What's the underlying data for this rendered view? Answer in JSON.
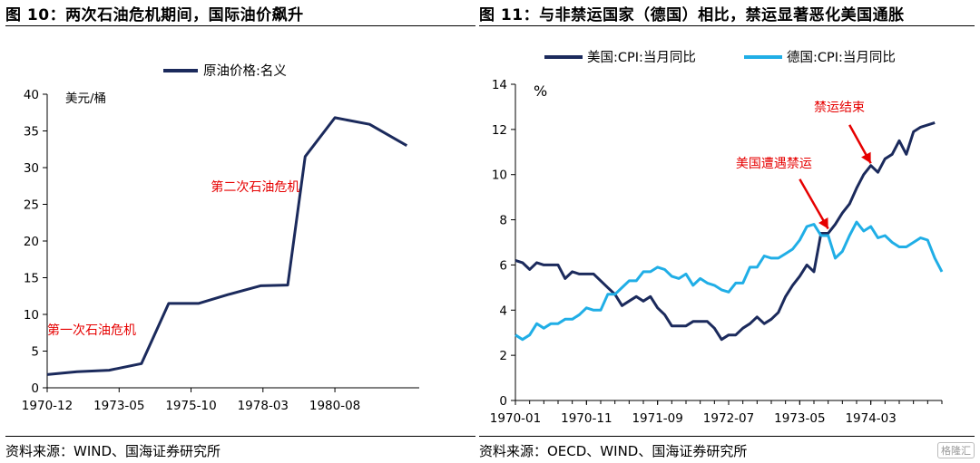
{
  "left": {
    "title": "图 10：两次石油危机期间，国际油价飙升",
    "source": "资料来源：WIND、国海证券研究所"
  },
  "right": {
    "title": "图 11：与非禁运国家（德国）相比，禁运显著恶化美国通胀",
    "source": "资料来源：OECD、WIND、国海证券研究所"
  },
  "watermark": "格隆汇",
  "colors": {
    "navy": "#1b2a5c",
    "lightblue": "#20aee6",
    "annotation": "#e60000"
  },
  "chart_data": [
    {
      "type": "line",
      "unit_label": "美元/桶",
      "ylim": [
        0,
        40
      ],
      "yticks": [
        0,
        5,
        10,
        15,
        20,
        25,
        30,
        35,
        40
      ],
      "xlabels": [
        "1970-12",
        "1973-05",
        "1975-10",
        "1978-03",
        "1980-08"
      ],
      "x_range": [
        "1970-12",
        "1983-06"
      ],
      "series": [
        {
          "name": "原油价格:名义",
          "color": "#1b2a5c",
          "points": [
            [
              "1970-12",
              1.8
            ],
            [
              "1971-12",
              2.2
            ],
            [
              "1973-01",
              2.4
            ],
            [
              "1974-02",
              3.3
            ],
            [
              "1975-01",
              11.5
            ],
            [
              "1976-01",
              11.5
            ],
            [
              "1977-01",
              12.7
            ],
            [
              "1978-02",
              13.9
            ],
            [
              "1979-01",
              14.0
            ],
            [
              "1979-08",
              31.5
            ],
            [
              "1980-08",
              36.8
            ],
            [
              "1981-10",
              35.9
            ],
            [
              "1983-01",
              33.0
            ]
          ]
        }
      ],
      "annotations": [
        {
          "text": "第一次石油危机",
          "x": "1970-12",
          "y": 7.3
        },
        {
          "text": "第二次石油危机",
          "x": "1976-06",
          "y": 26.8
        }
      ],
      "grid": false,
      "legend": "top"
    },
    {
      "type": "line",
      "unit_label": "%",
      "ylim": [
        0,
        14
      ],
      "yticks": [
        0,
        2,
        4,
        6,
        8,
        10,
        12,
        14
      ],
      "xlabels": [
        "1970-01",
        "1970-11",
        "1971-09",
        "1972-07",
        "1973-05",
        "1974-03"
      ],
      "x_range": [
        "1970-01",
        "1975-01"
      ],
      "series": [
        {
          "name": "美国:CPI:当月同比",
          "color": "#1b2a5c",
          "points": [
            [
              "1970-01",
              6.2
            ],
            [
              "1970-02",
              6.1
            ],
            [
              "1970-03",
              5.8
            ],
            [
              "1970-04",
              6.1
            ],
            [
              "1970-05",
              6.0
            ],
            [
              "1970-06",
              6.0
            ],
            [
              "1970-07",
              6.0
            ],
            [
              "1970-08",
              5.4
            ],
            [
              "1970-09",
              5.7
            ],
            [
              "1970-10",
              5.6
            ],
            [
              "1970-11",
              5.6
            ],
            [
              "1970-12",
              5.6
            ],
            [
              "1971-01",
              5.3
            ],
            [
              "1971-02",
              5.0
            ],
            [
              "1971-03",
              4.7
            ],
            [
              "1971-04",
              4.2
            ],
            [
              "1971-05",
              4.4
            ],
            [
              "1971-06",
              4.6
            ],
            [
              "1971-07",
              4.4
            ],
            [
              "1971-08",
              4.6
            ],
            [
              "1971-09",
              4.1
            ],
            [
              "1971-10",
              3.8
            ],
            [
              "1971-11",
              3.3
            ],
            [
              "1971-12",
              3.3
            ],
            [
              "1972-01",
              3.3
            ],
            [
              "1972-02",
              3.5
            ],
            [
              "1972-03",
              3.5
            ],
            [
              "1972-04",
              3.5
            ],
            [
              "1972-05",
              3.2
            ],
            [
              "1972-06",
              2.7
            ],
            [
              "1972-07",
              2.9
            ],
            [
              "1972-08",
              2.9
            ],
            [
              "1972-09",
              3.2
            ],
            [
              "1972-10",
              3.4
            ],
            [
              "1972-11",
              3.7
            ],
            [
              "1972-12",
              3.4
            ],
            [
              "1973-01",
              3.6
            ],
            [
              "1973-02",
              3.9
            ],
            [
              "1973-03",
              4.6
            ],
            [
              "1973-04",
              5.1
            ],
            [
              "1973-05",
              5.5
            ],
            [
              "1973-06",
              6.0
            ],
            [
              "1973-07",
              5.7
            ],
            [
              "1973-08",
              7.4
            ],
            [
              "1973-09",
              7.4
            ],
            [
              "1973-10",
              7.8
            ],
            [
              "1973-11",
              8.3
            ],
            [
              "1973-12",
              8.7
            ],
            [
              "1974-01",
              9.4
            ],
            [
              "1974-02",
              10.0
            ],
            [
              "1974-03",
              10.4
            ],
            [
              "1974-04",
              10.1
            ],
            [
              "1974-05",
              10.7
            ],
            [
              "1974-06",
              10.9
            ],
            [
              "1974-07",
              11.5
            ],
            [
              "1974-08",
              10.9
            ],
            [
              "1974-09",
              11.9
            ],
            [
              "1974-10",
              12.1
            ],
            [
              "1974-11",
              12.2
            ],
            [
              "1974-12",
              12.3
            ]
          ]
        },
        {
          "name": "德国:CPI:当月同比",
          "color": "#20aee6",
          "points": [
            [
              "1970-01",
              2.9
            ],
            [
              "1970-02",
              2.7
            ],
            [
              "1970-03",
              2.9
            ],
            [
              "1970-04",
              3.4
            ],
            [
              "1970-05",
              3.2
            ],
            [
              "1970-06",
              3.4
            ],
            [
              "1970-07",
              3.4
            ],
            [
              "1970-08",
              3.6
            ],
            [
              "1970-09",
              3.6
            ],
            [
              "1970-10",
              3.8
            ],
            [
              "1970-11",
              4.1
            ],
            [
              "1970-12",
              4.0
            ],
            [
              "1971-01",
              4.0
            ],
            [
              "1971-02",
              4.7
            ],
            [
              "1971-03",
              4.7
            ],
            [
              "1971-04",
              5.0
            ],
            [
              "1971-05",
              5.3
            ],
            [
              "1971-06",
              5.3
            ],
            [
              "1971-07",
              5.7
            ],
            [
              "1971-08",
              5.7
            ],
            [
              "1971-09",
              5.9
            ],
            [
              "1971-10",
              5.8
            ],
            [
              "1971-11",
              5.5
            ],
            [
              "1971-12",
              5.4
            ],
            [
              "1972-01",
              5.6
            ],
            [
              "1972-02",
              5.1
            ],
            [
              "1972-03",
              5.4
            ],
            [
              "1972-04",
              5.2
            ],
            [
              "1972-05",
              5.1
            ],
            [
              "1972-06",
              4.9
            ],
            [
              "1972-07",
              4.8
            ],
            [
              "1972-08",
              5.2
            ],
            [
              "1972-09",
              5.2
            ],
            [
              "1972-10",
              5.9
            ],
            [
              "1972-11",
              5.9
            ],
            [
              "1972-12",
              6.4
            ],
            [
              "1973-01",
              6.3
            ],
            [
              "1973-02",
              6.3
            ],
            [
              "1973-03",
              6.5
            ],
            [
              "1973-04",
              6.7
            ],
            [
              "1973-05",
              7.1
            ],
            [
              "1973-06",
              7.7
            ],
            [
              "1973-07",
              7.8
            ],
            [
              "1973-08",
              7.3
            ],
            [
              "1973-09",
              7.3
            ],
            [
              "1973-10",
              6.3
            ],
            [
              "1973-11",
              6.6
            ],
            [
              "1973-12",
              7.3
            ],
            [
              "1974-01",
              7.9
            ],
            [
              "1974-02",
              7.5
            ],
            [
              "1974-03",
              7.7
            ],
            [
              "1974-04",
              7.2
            ],
            [
              "1974-05",
              7.3
            ],
            [
              "1974-06",
              7.0
            ],
            [
              "1974-07",
              6.8
            ],
            [
              "1974-08",
              6.8
            ],
            [
              "1974-09",
              7.0
            ],
            [
              "1974-10",
              7.2
            ],
            [
              "1974-11",
              7.1
            ],
            [
              "1974-12",
              6.3
            ],
            [
              "1975-01",
              5.7
            ]
          ]
        }
      ],
      "annotations": [
        {
          "text": "美国遭遇禁运",
          "x": "1972-08",
          "y": 10.3
        },
        {
          "text": "禁运结束",
          "x": "1973-07",
          "y": 12.8
        }
      ],
      "arrows": [
        {
          "from": [
            "1973-05",
            9.8
          ],
          "to": [
            "1973-09",
            7.6
          ]
        },
        {
          "from": [
            "1973-12",
            12.2
          ],
          "to": [
            "1974-03",
            10.5
          ]
        }
      ],
      "grid": false,
      "legend": "top"
    }
  ]
}
